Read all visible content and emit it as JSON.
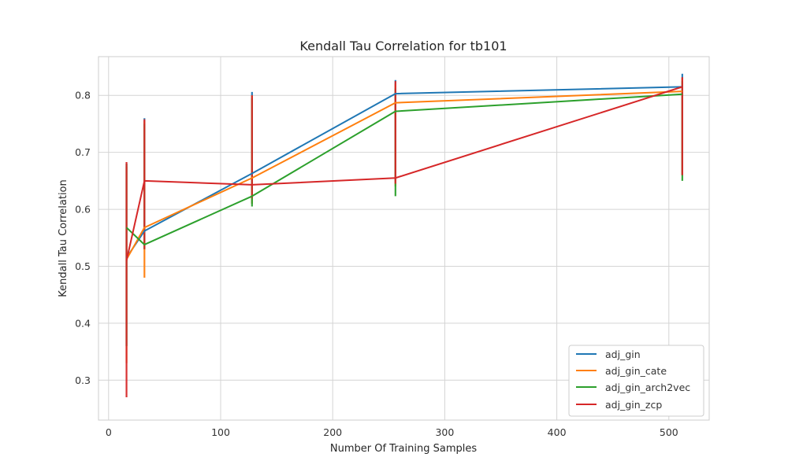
{
  "chart_data": {
    "type": "line",
    "title": "Kendall Tau Correlation for tb101",
    "xlabel": "Number Of Training Samples",
    "ylabel": "Kendall Tau Correlation",
    "xlim": [
      -9,
      536
    ],
    "ylim": [
      0.23,
      0.868
    ],
    "x_ticks": [
      0,
      100,
      200,
      300,
      400,
      500
    ],
    "y_ticks": [
      0.3,
      0.4,
      0.5,
      0.6,
      0.7,
      0.8
    ],
    "grid": true,
    "legend_position": "bottom-right",
    "x": [
      16,
      32,
      128,
      256,
      512
    ],
    "series": [
      {
        "name": "adj_gin",
        "color": "#1f77b4",
        "values": [
          0.515,
          0.562,
          0.663,
          0.803,
          0.815
        ],
        "spread": [
          [
            0.36,
            0.68
          ],
          [
            0.54,
            0.76
          ],
          [
            0.61,
            0.806
          ],
          [
            0.65,
            0.827
          ],
          [
            0.66,
            0.838
          ]
        ]
      },
      {
        "name": "adj_gin_cate",
        "color": "#ff7f0e",
        "values": [
          0.512,
          0.568,
          0.655,
          0.787,
          0.807
        ],
        "spread": [
          [
            0.33,
            0.675
          ],
          [
            0.48,
            0.755
          ],
          [
            0.61,
            0.8
          ],
          [
            0.64,
            0.82
          ],
          [
            0.66,
            0.83
          ]
        ]
      },
      {
        "name": "adj_gin_arch2vec",
        "color": "#2ca02c",
        "values": [
          0.568,
          0.538,
          0.623,
          0.772,
          0.802
        ],
        "spread": [
          [
            0.36,
            0.68
          ],
          [
            0.53,
            0.75
          ],
          [
            0.605,
            0.795
          ],
          [
            0.623,
            0.812
          ],
          [
            0.65,
            0.825
          ]
        ]
      },
      {
        "name": "adj_gin_zcp",
        "color": "#d62728",
        "values": [
          0.51,
          0.65,
          0.643,
          0.655,
          0.815
        ],
        "spread": [
          [
            0.27,
            0.683
          ],
          [
            0.53,
            0.758
          ],
          [
            0.62,
            0.8
          ],
          [
            0.645,
            0.825
          ],
          [
            0.66,
            0.832
          ]
        ]
      }
    ]
  }
}
